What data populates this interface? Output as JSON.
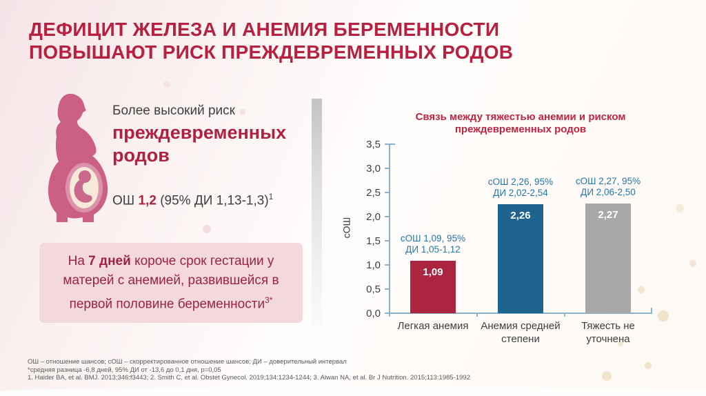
{
  "title": {
    "line1": "ДЕФИЦИТ ЖЕЛЕЗА И АНЕМИЯ БЕРЕМЕННОСТИ",
    "line2": "ПОВЫШАЮТ РИСК ПРЕЖДЕВРЕМЕННЫХ РОДОВ"
  },
  "left_panel": {
    "icon": "pregnant-woman-icon",
    "risk_line_small": "Более высокий риск",
    "risk_line_big1": "преждевременных",
    "risk_line_big2": "родов",
    "or_label": "ОШ",
    "or_value": "1,2",
    "or_ci": "(95% ДИ 1,13-1,3)",
    "or_ref_sup": "1",
    "note_pre": "На",
    "note_bold": "7 дней",
    "note_post": "короче срок гестации у матерей с анемией, развившейся в первой половине беременности",
    "note_sup": "3*"
  },
  "chart_data": {
    "type": "bar",
    "title_line1": "Связь между тяжестью анемии и риском",
    "title_line2": "преждевременных родов",
    "ylabel": "сОШ",
    "xlabel": "",
    "ylim": [
      0,
      3.5
    ],
    "ytick_step": 0.5,
    "yticks_top_to_bottom": [
      "3,5",
      "3,0",
      "2,5",
      "2,0",
      "1,5",
      "1,0",
      "0,5",
      "0,0"
    ],
    "grid": false,
    "legend": "none",
    "categories": [
      "Легкая анемия",
      "Анемия средней степени",
      "Тяжесть не уточнена"
    ],
    "category_lines": [
      [
        "Легкая анемия",
        ""
      ],
      [
        "Анемия средней",
        "степени"
      ],
      [
        "Тяжесть не",
        "уточнена"
      ]
    ],
    "values": [
      1.09,
      2.26,
      2.27
    ],
    "bar_value_labels": [
      "1,09",
      "2,26",
      "2,27"
    ],
    "bar_colors": [
      "#ab2440",
      "#1f648f",
      "#a8a8a8"
    ],
    "annotations": [
      {
        "line1": "сОШ 1,09, 95%",
        "line2": "ДИ 1,05-1,12"
      },
      {
        "line1": "сОШ 2,26, 95%",
        "line2": "ДИ 2,02-2,54"
      },
      {
        "line1": "сОШ 2,27, 95%",
        "line2": "ДИ 2,06-2,50"
      }
    ]
  },
  "footnotes": {
    "line1": "ОШ – отношение шансов; сОШ – скорректированное отношение шансов; ДИ – доверительный интервал",
    "line2": "*средняя разница -6,8 дней, 95% ДИ от -13,6 до 0,1 дня, p=0,05",
    "line3": "1. Haider BA, et al. BMJ. 2013;346:f3443; 2. Smith C, et al. Obstet Gynecol. 2019;134:1234-1244; 3. Alwan NA, et al. Br J Nutrition. 2015;113:1985-1992"
  },
  "colors": {
    "title_red": "#b7203f",
    "accent_red": "#ae2240",
    "note_red": "#9c2342",
    "note_bg": "#f3d8de",
    "annotation_blue": "#2478aa",
    "axis_blue": "#8ab4cc",
    "bar_red": "#ab2440",
    "bar_blue": "#1f648f",
    "bar_gray": "#a8a8a8",
    "body_text": "#3f3f3f",
    "footnote_gray": "#5a5a5a",
    "figure_pink": "#cc6084"
  }
}
